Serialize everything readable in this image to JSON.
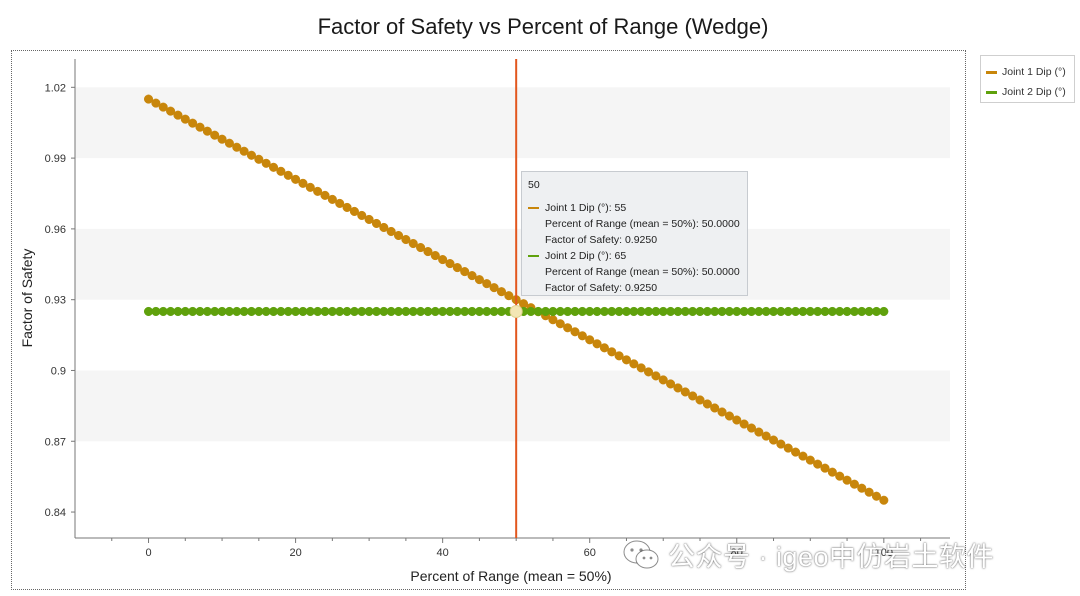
{
  "chart_data": {
    "type": "line",
    "title": "Factor of Safety vs Percent of Range (Wedge)",
    "xlabel": "Percent of Range (mean = 50%)",
    "ylabel": "Factor of Safety",
    "xlim": [
      -10,
      109
    ],
    "ylim": [
      0.829,
      1.032
    ],
    "x_ticks": [
      0,
      20,
      40,
      60,
      80,
      100
    ],
    "y_ticks": [
      1.02,
      0.99,
      0.96,
      0.93,
      0.9,
      0.87,
      0.84
    ],
    "y_tick_labels": [
      "1.02",
      "0.99",
      "0.96",
      "0.93",
      "0.9",
      "0.87",
      "0.84"
    ],
    "series": [
      {
        "name": "Joint 1 Dip (°)",
        "color": "#c8860b",
        "x_start": 0,
        "x_end": 100,
        "x_step": 1,
        "y_start": 1.015,
        "y_end": 0.845
      },
      {
        "name": "Joint 2 Dip (°)",
        "color": "#5fa10c",
        "x_start": 0,
        "x_end": 100,
        "x_step": 1,
        "y_start": 0.925,
        "y_end": 0.925
      }
    ],
    "marker_line": {
      "x": 50,
      "color": "#e2571e"
    }
  },
  "legend": {
    "items": [
      {
        "label": "Joint 1 Dip (°)",
        "color": "#c8860b"
      },
      {
        "label": "Joint 2 Dip (°)",
        "color": "#5fa10c"
      }
    ]
  },
  "tooltip": {
    "header": "50",
    "entries": [
      {
        "label": "Joint 1 Dip (°): 55",
        "percent": "Percent of Range (mean = 50%): 50.0000",
        "fos": "Factor of Safety: 0.9250",
        "color": "#c8860b"
      },
      {
        "label": "Joint 2 Dip (°): 65",
        "percent": "Percent of Range (mean = 50%): 50.0000",
        "fos": "Factor of Safety: 0.9250",
        "color": "#5fa10c"
      }
    ]
  },
  "watermark": {
    "text": "公众号 · igeo中仿岩土软件"
  }
}
